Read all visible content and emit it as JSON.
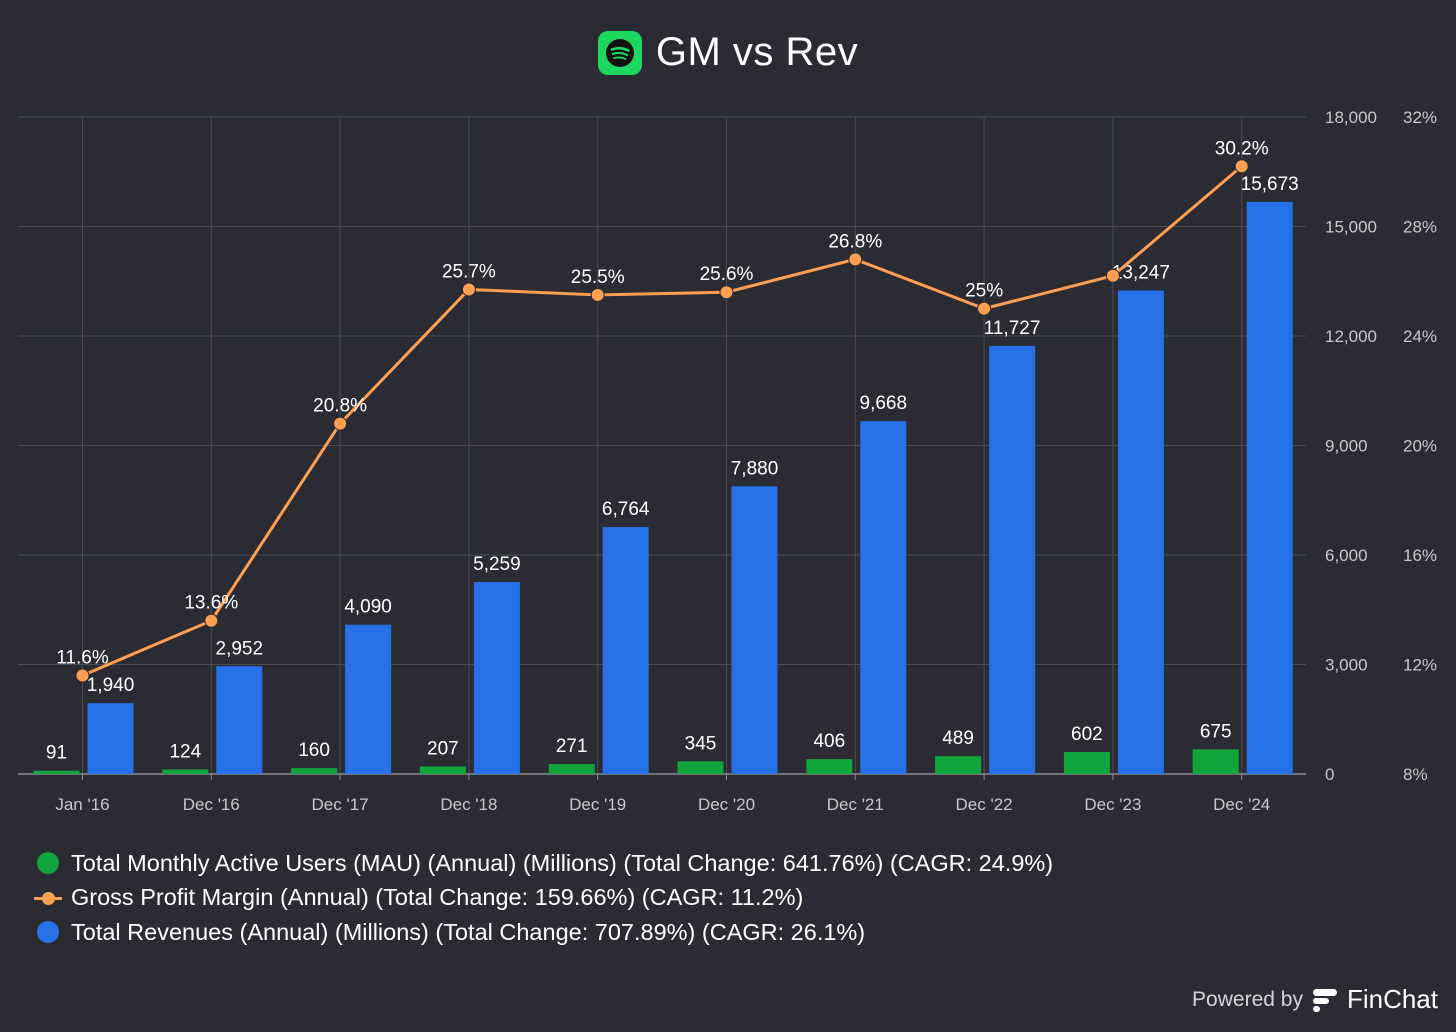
{
  "header": {
    "title": "GM vs Rev",
    "logo_icon": "spotify-icon"
  },
  "colors": {
    "background": "#2b2c33",
    "mau": "#12a53d",
    "margin": "#ff9f52",
    "revenue": "#2670e8",
    "grid": "#4a4b53",
    "axis_text": "#c7c8cc"
  },
  "chart_data": {
    "type": "bar",
    "categories": [
      "Jan '16",
      "Dec '16",
      "Dec '17",
      "Dec '18",
      "Dec '19",
      "Dec '20",
      "Dec '21",
      "Dec '22",
      "Dec '23",
      "Dec '24"
    ],
    "series": [
      {
        "name": "Total Monthly Active Users (MAU) (Annual) (Millions) (Total Change: 641.76%) (CAGR: 24.9%)",
        "type": "bar",
        "axis": "left",
        "color": "#12a53d",
        "values": [
          91,
          124,
          160,
          207,
          271,
          345,
          406,
          489,
          602,
          675
        ],
        "labels": [
          "91",
          "124",
          "160",
          "207",
          "271",
          "345",
          "406",
          "489",
          "602",
          "675"
        ]
      },
      {
        "name": "Total Revenues (Annual) (Millions) (Total Change: 707.89%) (CAGR: 26.1%)",
        "type": "bar",
        "axis": "left",
        "color": "#2670e8",
        "values": [
          1940,
          2952,
          4090,
          5259,
          6764,
          7880,
          9668,
          11727,
          13247,
          15673
        ],
        "labels": [
          "1,940",
          "2,952",
          "4,090",
          "5,259",
          "6,764",
          "7,880",
          "9,668",
          "11,727",
          "13,247",
          "15,673"
        ]
      },
      {
        "name": "Gross Profit Margin (Annual) (Total Change: 159.66%) (CAGR: 11.2%)",
        "type": "line",
        "axis": "right",
        "color": "#ff9f52",
        "values": [
          11.6,
          13.6,
          20.8,
          25.7,
          25.5,
          25.6,
          26.8,
          25,
          26.2,
          30.2
        ],
        "labels": [
          "11.6%",
          "13.6%",
          "20.8%",
          "25.7%",
          "25.5%",
          "25.6%",
          "26.8%",
          "25%",
          "",
          "30.2%"
        ]
      }
    ],
    "y_left": {
      "lim": [
        0,
        18000
      ],
      "ticks": [
        0,
        3000,
        6000,
        9000,
        12000,
        15000,
        18000
      ],
      "tick_labels": [
        "0",
        "3,000",
        "6,000",
        "9,000",
        "12,000",
        "15,000",
        "18,000"
      ]
    },
    "y_right": {
      "lim": [
        8,
        32
      ],
      "ticks": [
        8,
        12,
        16,
        20,
        24,
        28,
        32
      ],
      "tick_labels": [
        "8%",
        "12%",
        "16%",
        "20%",
        "24%",
        "28%",
        "32%"
      ]
    },
    "grid": true,
    "legend": "bottom-left"
  },
  "legend": {
    "items": [
      {
        "label": "Total Monthly Active Users (MAU) (Annual) (Millions) (Total Change: 641.76%) (CAGR: 24.9%)",
        "marker": "dot",
        "color": "#12a53d"
      },
      {
        "label": "Gross Profit Margin (Annual) (Total Change: 159.66%) (CAGR: 11.2%)",
        "marker": "line",
        "color": "#ff9f52"
      },
      {
        "label": "Total Revenues (Annual) (Millions) (Total Change: 707.89%) (CAGR: 26.1%)",
        "marker": "dot",
        "color": "#2670e8"
      }
    ]
  },
  "footer": {
    "powered_by": "Powered by",
    "brand": "FinChat",
    "brand_icon": "finchat-logo-icon"
  }
}
